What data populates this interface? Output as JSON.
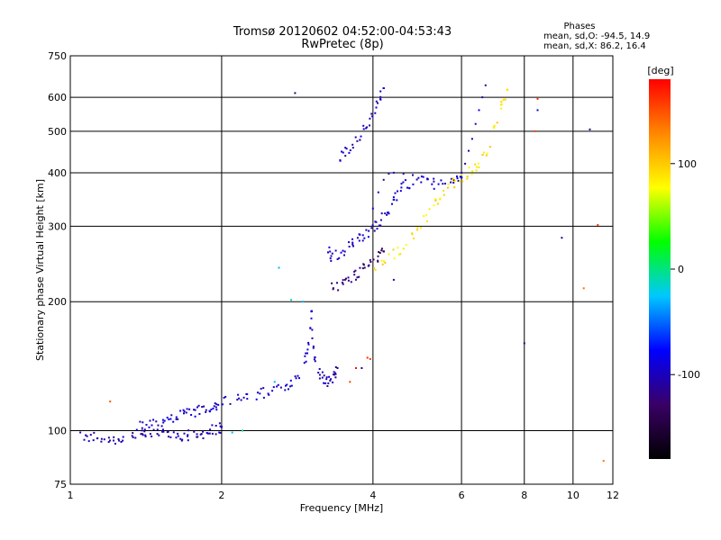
{
  "chart_data": {
    "type": "scatter",
    "title": "Tromsø 20120602 04:52:00-04:53:43",
    "subtitle": "RwPretec (8p)",
    "xlabel": "Frequency [MHz]",
    "ylabel": "Stationary phase Virtual Height [km]",
    "x_scale": "log",
    "y_scale": "log",
    "xlim": [
      1,
      12
    ],
    "ylim": [
      75,
      750
    ],
    "grid": true,
    "x_ticks": [
      "1",
      "2",
      "4",
      "6",
      "8",
      "10",
      "12"
    ],
    "y_ticks": [
      "75",
      "100",
      "200",
      "300",
      "400",
      "500",
      "600",
      "750"
    ],
    "stats": {
      "heading": "Phases",
      "line1": "mean, sd,O: -94.5, 14.9",
      "line2": "mean, sd,X:  86.2, 16.4"
    },
    "colorbar": {
      "label": "[deg]",
      "range": [
        -180,
        180
      ],
      "ticks": [
        "100",
        "0",
        "-100"
      ],
      "colors": [
        "#000000",
        "#3a0066",
        "#0000ff",
        "#00c8ff",
        "#00ff00",
        "#ffff00",
        "#ff8800",
        "#ff0000"
      ]
    },
    "series": [
      {
        "points": [
          [
            1.04,
            97
          ],
          [
            1.08,
            96
          ],
          [
            1.12,
            97
          ],
          [
            1.16,
            96
          ],
          [
            1.2,
            95
          ],
          [
            1.25,
            96
          ],
          [
            1.3,
            97
          ],
          [
            1.35,
            98
          ],
          [
            1.4,
            97
          ],
          [
            1.45,
            98
          ],
          [
            1.5,
            99
          ],
          [
            1.55,
            98
          ],
          [
            1.6,
            99
          ],
          [
            1.65,
            98
          ],
          [
            1.7,
            97
          ],
          [
            1.75,
            98
          ],
          [
            1.8,
            98
          ],
          [
            1.85,
            99
          ],
          [
            1.9,
            100
          ],
          [
            1.95,
            101
          ],
          [
            2.0,
            102
          ]
        ],
        "phase": -105
      },
      {
        "points": [
          [
            1.35,
            102
          ],
          [
            1.4,
            103
          ],
          [
            1.45,
            104
          ],
          [
            1.5,
            105
          ],
          [
            1.55,
            106
          ],
          [
            1.6,
            107
          ],
          [
            1.65,
            108
          ],
          [
            1.7,
            109
          ],
          [
            1.75,
            110
          ],
          [
            1.8,
            112
          ],
          [
            1.85,
            113
          ],
          [
            1.9,
            114
          ],
          [
            1.95,
            115
          ],
          [
            2.0,
            116
          ],
          [
            2.1,
            118
          ],
          [
            2.2,
            119
          ],
          [
            2.3,
            120
          ],
          [
            2.4,
            122
          ],
          [
            2.5,
            124
          ],
          [
            2.6,
            126
          ],
          [
            2.7,
            128
          ],
          [
            2.8,
            133
          ],
          [
            2.9,
            140
          ],
          [
            2.95,
            150
          ],
          [
            3.0,
            170
          ],
          [
            3.02,
            190
          ]
        ],
        "phase": -95
      },
      {
        "points": [
          [
            3.02,
            175
          ],
          [
            3.05,
            150
          ],
          [
            3.1,
            140
          ],
          [
            3.15,
            135
          ],
          [
            3.2,
            131
          ],
          [
            3.25,
            130
          ],
          [
            3.3,
            131
          ],
          [
            3.35,
            134
          ],
          [
            3.4,
            140
          ]
        ],
        "phase": -105
      },
      {
        "points": [
          [
            3.3,
            215
          ],
          [
            3.4,
            218
          ],
          [
            3.5,
            222
          ],
          [
            3.6,
            228
          ],
          [
            3.7,
            232
          ],
          [
            3.8,
            238
          ],
          [
            3.9,
            245
          ],
          [
            4.0,
            250
          ],
          [
            4.1,
            255
          ],
          [
            4.2,
            262
          ]
        ],
        "phase": -125
      },
      {
        "points": [
          [
            3.25,
            270
          ],
          [
            3.3,
            255
          ],
          [
            3.4,
            258
          ],
          [
            3.5,
            264
          ],
          [
            3.6,
            270
          ],
          [
            3.7,
            276
          ],
          [
            3.8,
            282
          ],
          [
            3.9,
            288
          ],
          [
            4.0,
            296
          ],
          [
            4.1,
            305
          ],
          [
            4.2,
            318
          ],
          [
            4.3,
            330
          ],
          [
            4.4,
            345
          ],
          [
            4.5,
            360
          ],
          [
            4.6,
            372
          ],
          [
            4.8,
            382
          ],
          [
            5.0,
            390
          ],
          [
            5.2,
            380
          ],
          [
            5.4,
            375
          ],
          [
            5.6,
            378
          ],
          [
            5.8,
            383
          ],
          [
            6.0,
            390
          ]
        ],
        "phase": -95
      },
      {
        "points": [
          [
            4.0,
            330
          ],
          [
            4.1,
            360
          ],
          [
            4.2,
            385
          ],
          [
            4.3,
            398
          ],
          [
            4.4,
            400
          ],
          [
            4.6,
            398
          ],
          [
            4.8,
            395
          ],
          [
            5.0,
            392
          ]
        ],
        "phase": -100
      },
      {
        "points": [
          [
            3.4,
            430
          ],
          [
            3.5,
            445
          ],
          [
            3.6,
            460
          ],
          [
            3.7,
            478
          ],
          [
            3.8,
            495
          ],
          [
            3.9,
            515
          ],
          [
            4.0,
            545
          ],
          [
            4.1,
            585
          ],
          [
            4.2,
            630
          ]
        ],
        "phase": -100
      },
      {
        "points": [
          [
            4.0,
            242
          ],
          [
            4.2,
            248
          ],
          [
            4.4,
            258
          ],
          [
            4.6,
            270
          ],
          [
            4.8,
            285
          ],
          [
            5.0,
            305
          ],
          [
            5.2,
            325
          ],
          [
            5.4,
            345
          ],
          [
            5.6,
            365
          ],
          [
            5.8,
            380
          ],
          [
            6.0,
            392
          ],
          [
            6.2,
            400
          ],
          [
            6.4,
            410
          ],
          [
            6.6,
            430
          ],
          [
            6.8,
            460
          ],
          [
            7.0,
            510
          ],
          [
            7.2,
            570
          ],
          [
            7.4,
            625
          ]
        ],
        "phase": 90
      },
      {
        "points": [
          [
            6.0,
            400
          ],
          [
            6.1,
            420
          ],
          [
            6.2,
            450
          ],
          [
            6.3,
            480
          ],
          [
            6.4,
            520
          ],
          [
            6.5,
            560
          ],
          [
            6.6,
            600
          ],
          [
            6.7,
            640
          ]
        ],
        "phase": -100
      },
      {
        "points": [
          [
            3.9,
            148
          ],
          [
            3.95,
            147
          ],
          [
            3.7,
            140
          ],
          [
            3.6,
            130
          ]
        ],
        "phase": 160
      },
      {
        "points": [
          [
            2.6,
            240
          ],
          [
            2.75,
            202
          ],
          [
            2.9,
            200
          ],
          [
            2.55,
            130
          ],
          [
            2.2,
            100
          ],
          [
            2.1,
            99
          ]
        ],
        "phase": -20
      },
      {
        "points": [
          [
            1.2,
            117
          ],
          [
            8.5,
            595
          ],
          [
            8.4,
            500
          ],
          [
            10.5,
            215
          ],
          [
            11.2,
            302
          ],
          [
            11.5,
            85
          ]
        ],
        "phase": 150
      },
      {
        "points": [
          [
            2.8,
            614
          ],
          [
            3.8,
            140
          ],
          [
            4.4,
            225
          ],
          [
            8.0,
            160
          ],
          [
            9.5,
            282
          ],
          [
            10.8,
            505
          ],
          [
            8.5,
            560
          ]
        ],
        "phase": -110
      }
    ]
  }
}
